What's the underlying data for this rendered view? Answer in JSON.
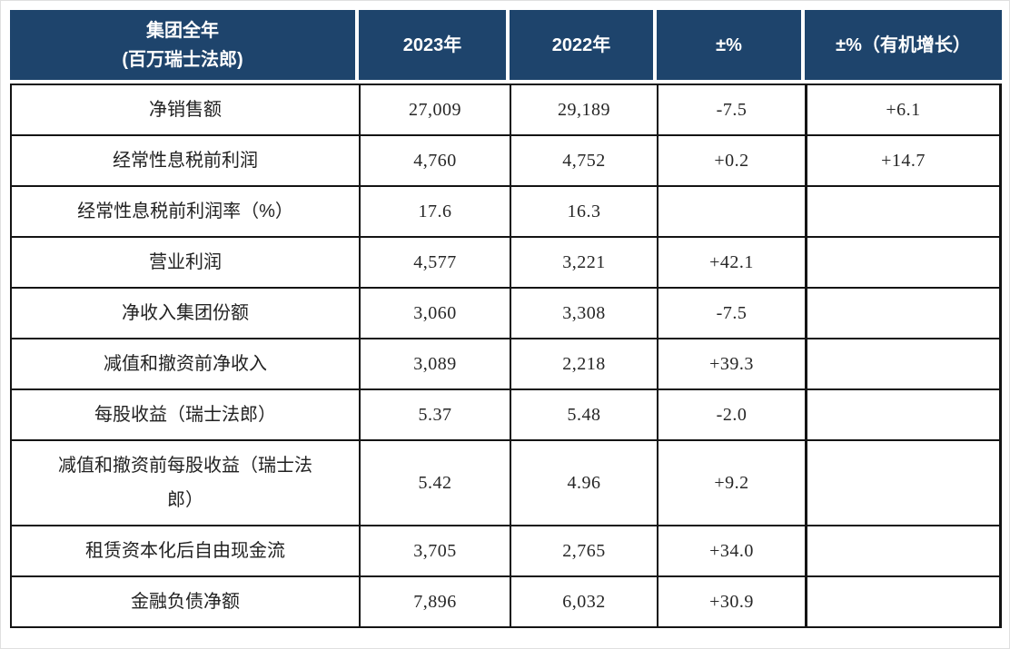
{
  "table": {
    "header": {
      "group_title_line1": "集团全年",
      "group_title_line2": "(百万瑞士法郎)",
      "col_2023": "2023年",
      "col_2022": "2022年",
      "col_change": "±%",
      "col_organic": "±%（有机增长）"
    },
    "rows": [
      {
        "label": "净销售额",
        "v2023": "27,009",
        "v2022": "29,189",
        "change": "-7.5",
        "organic": "+6.1"
      },
      {
        "label": "经常性息税前利润",
        "v2023": "4,760",
        "v2022": "4,752",
        "change": "+0.2",
        "organic": "+14.7"
      },
      {
        "label": "经常性息税前利润率（%）",
        "v2023": "17.6",
        "v2022": "16.3",
        "change": "",
        "organic": ""
      },
      {
        "label": "营业利润",
        "v2023": "4,577",
        "v2022": "3,221",
        "change": "+42.1",
        "organic": ""
      },
      {
        "label": "净收入集团份额",
        "v2023": "3,060",
        "v2022": "3,308",
        "change": "-7.5",
        "organic": ""
      },
      {
        "label": "减值和撤资前净收入",
        "v2023": "3,089",
        "v2022": "2,218",
        "change": "+39.3",
        "organic": ""
      },
      {
        "label": "每股收益（瑞士法郎）",
        "v2023": "5.37",
        "v2022": "5.48",
        "change": "-2.0",
        "organic": ""
      },
      {
        "label": "减值和撤资前每股收益（瑞士法郎）",
        "v2023": "5.42",
        "v2022": "4.96",
        "change": "+9.2",
        "organic": ""
      },
      {
        "label": "租赁资本化后自由现金流",
        "v2023": "3,705",
        "v2022": "2,765",
        "change": "+34.0",
        "organic": ""
      },
      {
        "label": "金融负债净额",
        "v2023": "7,896",
        "v2022": "6,032",
        "change": "+30.9",
        "organic": ""
      }
    ]
  },
  "colors": {
    "header_bg": "#1E446C",
    "header_text": "#ffffff",
    "border": "#141414",
    "text": "#222222"
  }
}
